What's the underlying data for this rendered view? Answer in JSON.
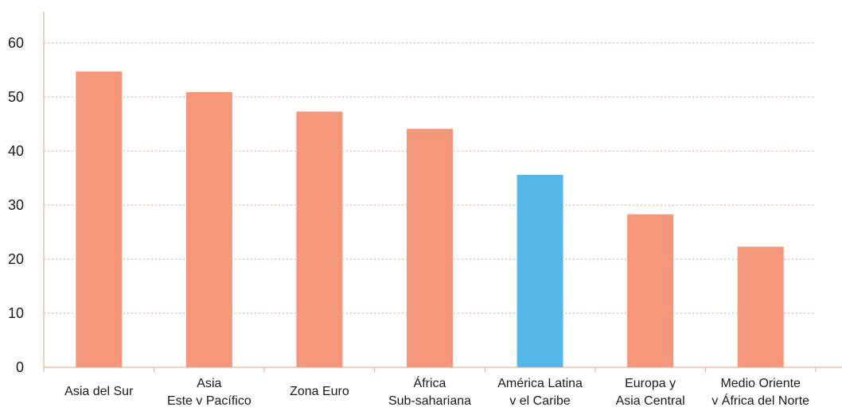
{
  "chart_data": {
    "type": "bar",
    "title": "",
    "xlabel": "",
    "ylabel": "",
    "categories": [
      [
        "Asia del Sur"
      ],
      [
        "Asia",
        "Este v Pacífico"
      ],
      [
        "Zona Euro"
      ],
      [
        "África",
        "Sub-sahariana"
      ],
      [
        "América Latina",
        "v el Caribe"
      ],
      [
        "Europa y",
        "Asia Central"
      ],
      [
        "Medio Oriente",
        "v África del Norte"
      ]
    ],
    "values": [
      54.7,
      50.9,
      47.3,
      44.1,
      35.6,
      28.3,
      22.3
    ],
    "ylim": [
      0,
      60
    ],
    "yticks": [
      0,
      10,
      20,
      30,
      40,
      50,
      60
    ],
    "grid": true,
    "colors": {
      "default": "#F4977A",
      "highlight": "#54B7E8",
      "grid": "#E8A080",
      "axis": "#E8A080"
    },
    "highlight_index": 4
  }
}
